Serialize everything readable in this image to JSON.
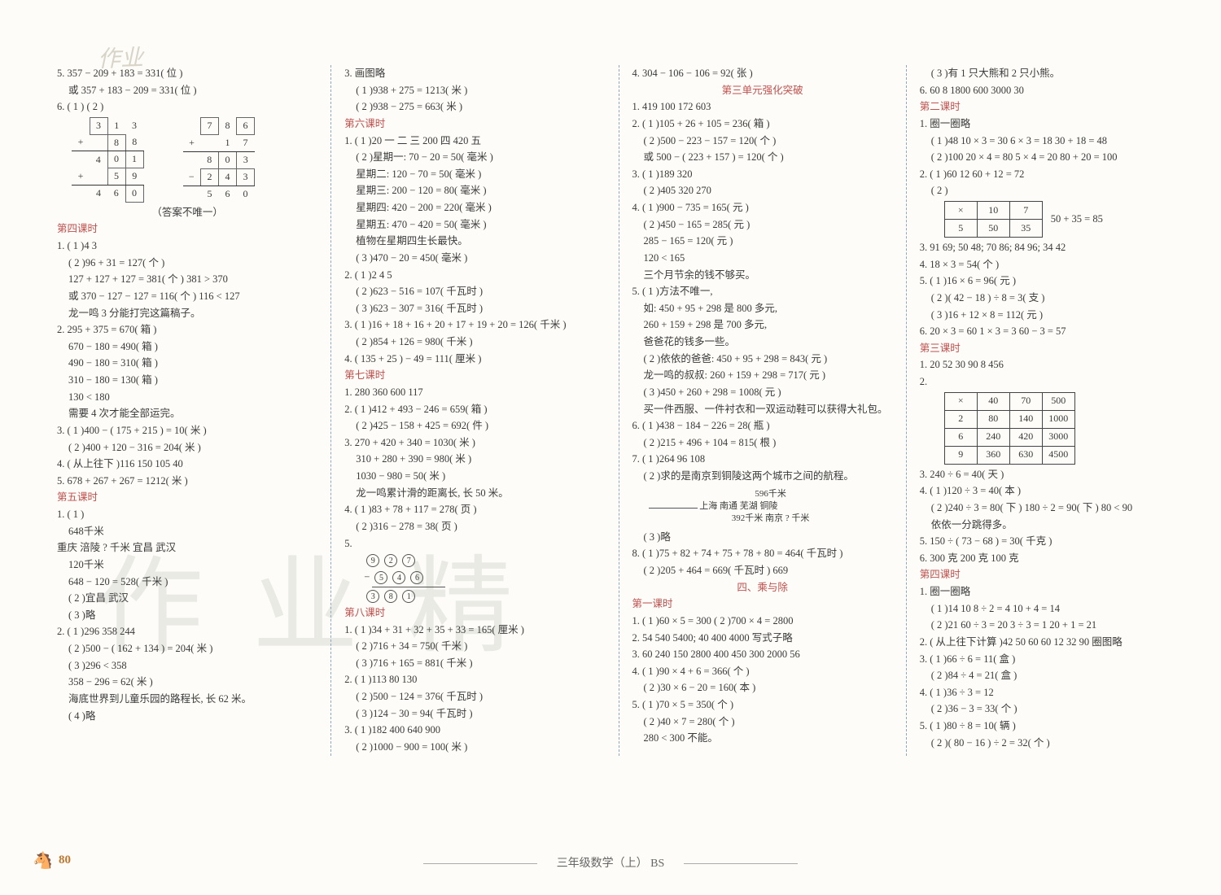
{
  "watermark_small": "作业",
  "watermark_big": "作业精",
  "page_number": "80",
  "footer_center": "三年级数学（上）  BS",
  "col1": {
    "l5a": "5. 357 − 209 + 183 = 331( 位 )",
    "l5b": "或 357 + 183 − 209 = 331( 位 )",
    "l6": "6. ( 1 )                      ( 2 )",
    "calc1": {
      "r1": [
        "",
        "3",
        "1",
        "3"
      ],
      "r2": [
        "+",
        "",
        "8",
        "8"
      ],
      "r2box": [
        false,
        false,
        true,
        false
      ],
      "r3": [
        "",
        "4",
        "0",
        "1"
      ],
      "r3box": [
        false,
        false,
        true,
        true
      ],
      "r4": [
        "+",
        "",
        "5",
        "9"
      ],
      "r4box": [
        false,
        false,
        true,
        false
      ],
      "r5": [
        "",
        "4",
        "6",
        "0"
      ],
      "r5box": [
        false,
        false,
        false,
        true
      ]
    },
    "calc2": {
      "r1": [
        "",
        "7",
        "8",
        "6"
      ],
      "r1box": [
        false,
        true,
        false,
        true
      ],
      "r2": [
        "+",
        "",
        "1",
        "7"
      ],
      "r3": [
        "",
        "8",
        "0",
        "3"
      ],
      "r3box": [
        false,
        false,
        true,
        false
      ],
      "r4": [
        "−",
        "2",
        "4",
        "3"
      ],
      "r4box": [
        false,
        true,
        true,
        true
      ],
      "r5": [
        "",
        "5",
        "6",
        "0"
      ]
    },
    "note": "（答案不唯一）",
    "sec4": "第四课时",
    "s4": [
      "1. ( 1 )4  3",
      "( 2 )96 + 31 = 127( 个 )",
      "127 + 127 + 127 = 381( 个 )   381 > 370",
      "或 370 − 127 − 127 = 116( 个 )   116 < 127",
      "龙一鸣 3 分能打完这篇稿子。",
      "2. 295 + 375 = 670( 箱 )",
      "670 − 180 = 490( 箱 )",
      "490 − 180 = 310( 箱 )",
      "310 − 180 = 130( 箱 )",
      "130 < 180",
      "需要 4 次才能全部运完。",
      "3. ( 1 )400 − ( 175 + 215 ) = 10( 米 )",
      "( 2 )400 + 120 − 316 = 204( 米 )",
      "4. ( 从上往下 )116  150  105  40",
      "5. 678 + 267 + 267 = 1212( 米 )"
    ],
    "sec5": "第五课时",
    "s5": [
      "1. ( 1 )",
      "648千米",
      "重庆  涪陵   ? 千米   宜昌           武汉",
      "120千米",
      "648 − 120 = 528( 千米 )",
      "( 2 )宜昌  武汉",
      "( 3 )略",
      "2. ( 1 )296  358  244",
      "( 2 )500 − ( 162 + 134 ) = 204( 米 )",
      "( 3 )296 < 358",
      "358 − 296 = 62( 米 )",
      "海底世界到儿童乐园的路程长, 长 62 米。",
      "( 4 )略"
    ]
  },
  "col2": {
    "s3": [
      "3. 画图略",
      "( 1 )938 + 275 = 1213( 米 )",
      "( 2 )938 − 275 = 663( 米 )"
    ],
    "sec6": "第六课时",
    "s6": [
      "1. ( 1 )20  一  二  三  200  四  420  五",
      "( 2 )星期一: 70 − 20 = 50( 毫米 )",
      "星期二: 120 − 70 = 50( 毫米 )",
      "星期三: 200 − 120 = 80( 毫米 )",
      "星期四: 420 − 200 = 220( 毫米 )",
      "星期五: 470 − 420 = 50( 毫米 )",
      "植物在星期四生长最快。",
      "( 3 )470 − 20 = 450( 毫米 )",
      "2. ( 1 )2  4  5",
      "( 2 )623 − 516 = 107( 千瓦时 )",
      "( 3 )623 − 307 = 316( 千瓦时 )",
      "3. ( 1 )16 + 18 + 16 + 20 + 17 + 19 + 20 = 126( 千米 )",
      "( 2 )854 + 126 = 980( 千米 )",
      "4. ( 135 + 25 ) − 49 = 111( 厘米 )"
    ],
    "sec7": "第七课时",
    "s7": [
      "1. 280  360  600  117",
      "2. ( 1 )412 + 493 − 246 = 659( 箱 )",
      "( 2 )425 − 158 + 425 = 692( 件 )",
      "3. 270 + 420 + 340 = 1030( 米 )",
      "310 + 280 + 390 = 980( 米 )",
      "1030 − 980 = 50( 米 )",
      "龙一鸣累计滑的距离长, 长 50 米。",
      "4. ( 1 )83 + 78 + 117 = 278( 页 )",
      "( 2 )316 − 278 = 38( 页 )",
      "5."
    ],
    "circles": [
      [
        "9",
        "2",
        "7"
      ],
      [
        "5",
        "4",
        "6"
      ],
      [
        "3",
        "8",
        "1"
      ]
    ],
    "sec8": "第八课时",
    "s8": [
      "1. ( 1 )34 + 31 + 32 + 35 + 33 = 165( 厘米 )",
      "( 2 )716 + 34 = 750( 千米 )",
      "( 3 )716 + 165 = 881( 千米 )",
      "2. ( 1 )113  80  130",
      "( 2 )500 − 124 = 376( 千瓦时 )",
      "( 3 )124 − 30 = 94( 千瓦时 )",
      "3. ( 1 )182  400  640  900",
      "( 2 )1000 − 900 = 100( 米 )"
    ]
  },
  "col3": {
    "s4": "4. 304 − 106 − 106 = 92( 张 )",
    "u3": "第三单元强化突破",
    "u3_lines": [
      "1. 419  100  172  603",
      "2. ( 1 )105 + 26 + 105 = 236( 箱 )",
      "( 2 )500 − 223 − 157 = 120( 个 )",
      "或 500 − ( 223 + 157 ) = 120( 个 )",
      "3. ( 1 )189  320",
      "( 2 )405  320  270",
      "4. ( 1 )900 − 735 = 165( 元 )",
      "( 2 )450 − 165 = 285( 元 )",
      "285 − 165 = 120( 元 )",
      "120 < 165",
      "三个月节余的钱不够买。",
      "5. ( 1 )方法不唯一,",
      "如: 450 + 95 + 298 是 800 多元,",
      "260 + 159 + 298 是 700 多元,",
      "爸爸花的钱多一些。",
      "( 2 )依依的爸爸: 450 + 95 + 298 = 843( 元 )",
      "龙一鸣的叔叔: 260 + 159 + 298 = 717( 元 )",
      "( 3 )450 + 260 + 298 = 1008( 元 )",
      "买一件西服、一件衬衣和一双运动鞋可以获得大礼包。",
      "6. ( 1 )438 − 184 − 226 = 28( 瓶 )",
      "( 2 )215 + 496 + 104 = 815( 根 )",
      "7. ( 1 )264  96  108",
      "( 2 )求的是南京到铜陵这两个城市之间的航程。"
    ],
    "diagram": {
      "top": "596千米",
      "cities": "上海  南通           芜湖  铜陵",
      "bottom": "392千米    南京   ? 千米"
    },
    "after_dia": [
      "( 3 )略",
      "8. ( 1 )75 + 82 + 74 + 75 + 78 + 80 = 464( 千瓦时 )",
      "( 2 )205 + 464 = 669( 千瓦时 )   669"
    ],
    "chap4": "四、乘与除",
    "sec1": "第一课时",
    "s1": [
      "1. ( 1 )60 × 5 = 300   ( 2 )700 × 4 = 2800",
      "2. 54  540  5400; 40  400  4000  写式子略",
      "3. 60  240  150  2800  400  450  300  2000  56",
      "4. ( 1 )90 × 4 + 6 = 366( 个 )",
      "( 2 )30 × 6 − 20 = 160( 本 )",
      "5. ( 1 )70 × 5 = 350( 个 )",
      "( 2 )40 × 7 = 280( 个 )",
      "280 < 300   不能。"
    ]
  },
  "col4": {
    "top": [
      "( 3 )有 1 只大熊和 2 只小熊。",
      "6. 60  8  1800  600  3000  30"
    ],
    "sec2": "第二课时",
    "s2a": [
      "1. 圈一圈略",
      "( 1 )48   10 × 3 = 30   6 × 3 = 18   30 + 18 = 48",
      "( 2 )100   20 × 4 = 80   5 × 4 = 20   80 + 20 = 100",
      "2. ( 1 )60  12   60 + 12 = 72",
      "( 2 )"
    ],
    "tbl2": {
      "head": [
        "×",
        "10",
        "7"
      ],
      "row": [
        "5",
        "50",
        "35"
      ],
      "side": "50 + 35 = 85"
    },
    "s2b": [
      "3. 91  69; 50  48; 70  86; 84  96; 34  42",
      "4. 18 × 3 = 54( 个 )",
      "5. ( 1 )16 × 6 = 96( 元 )",
      "( 2 )( 42 − 18 ) ÷ 8 = 3( 支 )",
      "( 3 )16 + 12 × 8 = 112( 元 )",
      "6. 20 × 3 = 60   1 × 3 = 3   60 − 3 = 57"
    ],
    "sec3": "第三课时",
    "s3a": [
      "1. 20  52  30  90  8  456",
      "2."
    ],
    "tbl3": {
      "head": [
        "×",
        "40",
        "70",
        "500"
      ],
      "rows": [
        [
          "2",
          "80",
          "140",
          "1000"
        ],
        [
          "6",
          "240",
          "420",
          "3000"
        ],
        [
          "9",
          "360",
          "630",
          "4500"
        ]
      ]
    },
    "s3b": [
      "3. 240 ÷ 6 = 40( 天 )",
      "4. ( 1 )120 ÷ 3 = 40( 本 )",
      "( 2 )240 ÷ 3 = 80( 下 )   180 ÷ 2 = 90( 下 )   80 < 90",
      "依依一分跳得多。",
      "5. 150 ÷ ( 73 − 68 ) = 30( 千克 )",
      "6. 300 克  200 克  100 克"
    ],
    "sec4": "第四课时",
    "s4": [
      "1. 圈一圈略",
      "( 1 )14  10   8 ÷ 2 = 4   10 + 4 = 14",
      "( 2 )21  60 ÷ 3 = 20   3 ÷ 3 = 1   20 + 1 = 21",
      "2. ( 从上往下计算 )42  50  60  60  12  32  90  圈图略",
      "3. ( 1 )66 ÷ 6 = 11( 盒 )",
      "( 2 )84 ÷ 4 = 21( 盒 )",
      "4. ( 1 )36 ÷ 3 = 12",
      "( 2 )36 − 3 = 33( 个 )",
      "5. ( 1 )80 ÷ 8 = 10( 辆 )",
      "( 2 )( 80 − 16 ) ÷ 2 = 32( 个 )"
    ]
  },
  "colors": {
    "background": "#fdfcf8",
    "text": "#3a3a3a",
    "red": "#c0504d",
    "orange": "#d87a3a",
    "sep": "#8aa8c0",
    "watermark": "#d8d4c8"
  }
}
